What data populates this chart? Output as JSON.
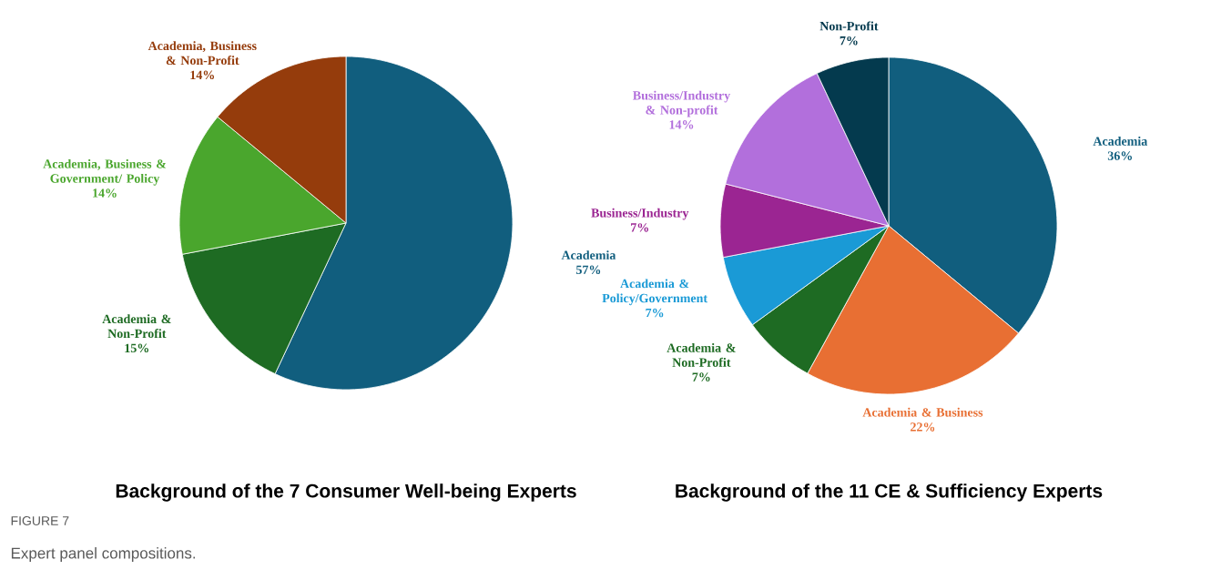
{
  "chart_data": [
    {
      "type": "pie",
      "title": "Background of the 7 Consumer Well-being Experts",
      "categories": [
        "Academia",
        "Academia & Non-Profit",
        "Academia, Business & Government/ Policy",
        "Academia, Business & Non-Profit"
      ],
      "values": [
        57,
        15,
        14,
        14
      ],
      "value_labels": [
        "57%",
        "15%",
        "14%",
        "14%"
      ],
      "colors": [
        "#115e7e",
        "#1e6b23",
        "#4aa62d",
        "#953c0c"
      ],
      "annotations": [
        "FIGURE 7",
        "Expert panel compositions."
      ]
    },
    {
      "type": "pie",
      "title": "Background of the 11 CE & Sufficiency Experts",
      "categories": [
        "Academia",
        "Academia & Business",
        "Academia & Non-Profit",
        "Academia & Policy/Government",
        "Business/Industry",
        "Business/Industry & Non-profit",
        "Non-Profit"
      ],
      "values": [
        36,
        22,
        7,
        7,
        7,
        14,
        7
      ],
      "value_labels": [
        "36%",
        "22%",
        "7%",
        "7%",
        "7%",
        "14%",
        "7%"
      ],
      "colors": [
        "#115e7e",
        "#e86f33",
        "#1e6b23",
        "#1a9ad6",
        "#9b2592",
        "#b26fdc",
        "#043a4e"
      ]
    }
  ]
}
